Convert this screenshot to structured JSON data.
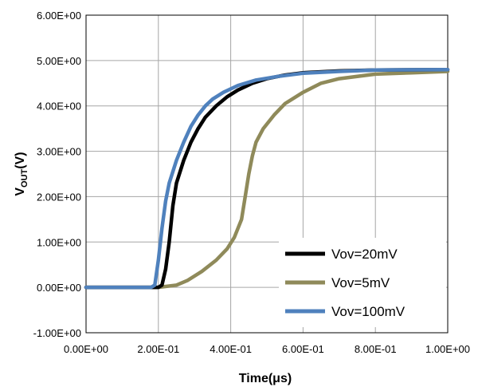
{
  "chart_data": {
    "type": "line",
    "xlabel": "Time(μs)",
    "ylabel": "V",
    "ylabel_sub": "OUT",
    "ylabel_unit": "(V)",
    "xlim": [
      0,
      1.0
    ],
    "ylim": [
      -1,
      6
    ],
    "x_ticks": [
      0,
      0.2,
      0.4,
      0.6,
      0.8,
      1.0
    ],
    "x_tick_labels": [
      "0.00E+00",
      "2.00E-01",
      "4.00E-01",
      "6.00E-01",
      "8.00E-01",
      "1.00E+00"
    ],
    "y_ticks": [
      -1,
      0,
      1,
      2,
      3,
      4,
      5,
      6
    ],
    "y_tick_labels": [
      "-1.00E+00",
      "0.00E+00",
      "1.00E+00",
      "2.00E+00",
      "3.00E+00",
      "4.00E+00",
      "5.00E+00",
      "6.00E+00"
    ],
    "grid": true,
    "legend_position": "bottom-right",
    "series": [
      {
        "name": "Vov=20mV",
        "color": "#000000",
        "points": [
          [
            0.0,
            0.0
          ],
          [
            0.1,
            0.0
          ],
          [
            0.2,
            0.0
          ],
          [
            0.21,
            0.05
          ],
          [
            0.22,
            0.4
          ],
          [
            0.23,
            1.0
          ],
          [
            0.24,
            1.8
          ],
          [
            0.25,
            2.3
          ],
          [
            0.27,
            2.8
          ],
          [
            0.29,
            3.2
          ],
          [
            0.31,
            3.5
          ],
          [
            0.33,
            3.75
          ],
          [
            0.36,
            4.0
          ],
          [
            0.39,
            4.2
          ],
          [
            0.42,
            4.35
          ],
          [
            0.46,
            4.5
          ],
          [
            0.5,
            4.6
          ],
          [
            0.55,
            4.68
          ],
          [
            0.6,
            4.73
          ],
          [
            0.7,
            4.77
          ],
          [
            0.8,
            4.79
          ],
          [
            1.0,
            4.8
          ]
        ]
      },
      {
        "name": "Vov=5mV",
        "color": "#8f8a5a",
        "points": [
          [
            0.0,
            0.0
          ],
          [
            0.2,
            0.0
          ],
          [
            0.25,
            0.05
          ],
          [
            0.28,
            0.15
          ],
          [
            0.32,
            0.35
          ],
          [
            0.36,
            0.6
          ],
          [
            0.39,
            0.85
          ],
          [
            0.41,
            1.1
          ],
          [
            0.43,
            1.5
          ],
          [
            0.44,
            2.0
          ],
          [
            0.45,
            2.5
          ],
          [
            0.46,
            2.9
          ],
          [
            0.47,
            3.2
          ],
          [
            0.49,
            3.5
          ],
          [
            0.52,
            3.8
          ],
          [
            0.55,
            4.05
          ],
          [
            0.6,
            4.3
          ],
          [
            0.65,
            4.5
          ],
          [
            0.7,
            4.6
          ],
          [
            0.8,
            4.7
          ],
          [
            0.9,
            4.73
          ],
          [
            1.0,
            4.76
          ]
        ]
      },
      {
        "name": "Vov=100mV",
        "color": "#4f81bd",
        "points": [
          [
            0.0,
            0.0
          ],
          [
            0.1,
            0.0
          ],
          [
            0.18,
            0.0
          ],
          [
            0.19,
            0.05
          ],
          [
            0.2,
            0.6
          ],
          [
            0.21,
            1.3
          ],
          [
            0.22,
            1.9
          ],
          [
            0.23,
            2.3
          ],
          [
            0.25,
            2.8
          ],
          [
            0.27,
            3.2
          ],
          [
            0.29,
            3.55
          ],
          [
            0.31,
            3.8
          ],
          [
            0.33,
            4.0
          ],
          [
            0.35,
            4.15
          ],
          [
            0.38,
            4.3
          ],
          [
            0.42,
            4.45
          ],
          [
            0.47,
            4.57
          ],
          [
            0.53,
            4.65
          ],
          [
            0.6,
            4.72
          ],
          [
            0.7,
            4.76
          ],
          [
            0.8,
            4.79
          ],
          [
            1.0,
            4.8
          ]
        ]
      }
    ]
  }
}
